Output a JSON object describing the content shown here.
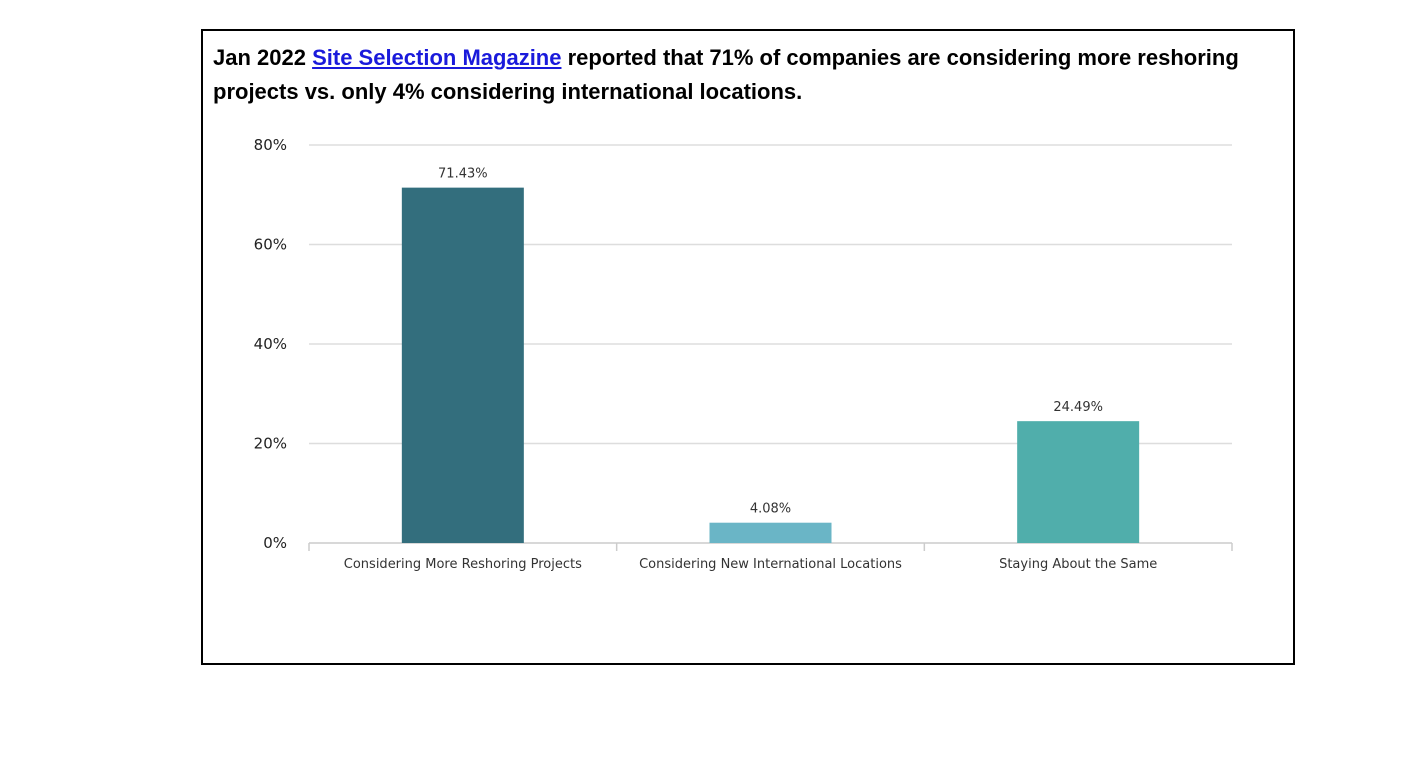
{
  "headline": {
    "prefix": "Jan 2022 ",
    "link_text": "Site Selection Magazine",
    "suffix": " reported that 71% of companies are considering more reshoring projects vs. only 4% considering international locations."
  },
  "chart_data": {
    "type": "bar",
    "title": "",
    "xlabel": "",
    "ylabel": "",
    "categories": [
      "Considering More Reshoring Projects",
      "Considering New International Locations",
      "Staying About the Same"
    ],
    "values": [
      71.43,
      4.08,
      24.49
    ],
    "data_labels": [
      "71.43%",
      "4.08%",
      "24.49%"
    ],
    "colors": [
      "#336e7d",
      "#6ab5c6",
      "#50aeab"
    ],
    "ylim": [
      0,
      80
    ],
    "yticks": [
      0,
      20,
      40,
      60,
      80
    ],
    "ytick_labels": [
      "0%",
      "20%",
      "40%",
      "60%",
      "80%"
    ],
    "grid": true,
    "gridline_color": "#dddddd"
  }
}
